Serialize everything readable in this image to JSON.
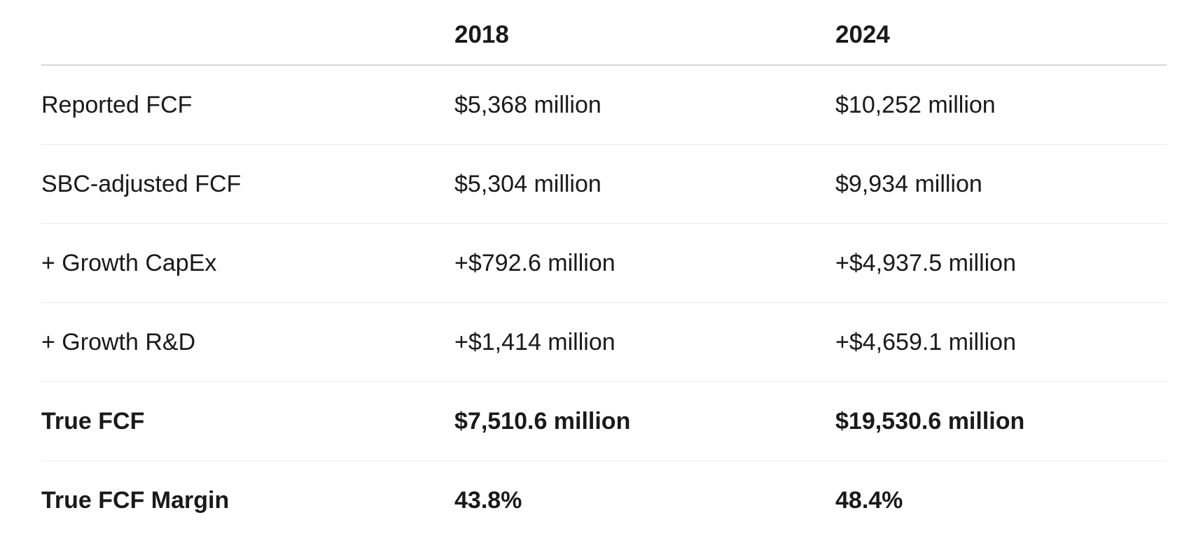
{
  "table": {
    "columns": [
      "",
      "2018",
      "2024"
    ],
    "rows": [
      {
        "label": "Reported FCF",
        "y2018": "$5,368 million",
        "y2024": "$10,252 million",
        "bold": false
      },
      {
        "label": "SBC-adjusted FCF",
        "y2018": "$5,304 million",
        "y2024": "$9,934 million",
        "bold": false
      },
      {
        "label": "+ Growth CapEx",
        "y2018": "+$792.6 million",
        "y2024": "+$4,937.5 million",
        "bold": false
      },
      {
        "label": "+ Growth R&D",
        "y2018": "+$1,414 million",
        "y2024": "+$4,659.1 million",
        "bold": false
      },
      {
        "label": "True FCF",
        "y2018": "$7,510.6 million",
        "y2024": "$19,530.6 million",
        "bold": true
      },
      {
        "label": "True FCF Margin",
        "y2018": "43.8%",
        "y2024": "48.4%",
        "bold": true
      }
    ]
  }
}
